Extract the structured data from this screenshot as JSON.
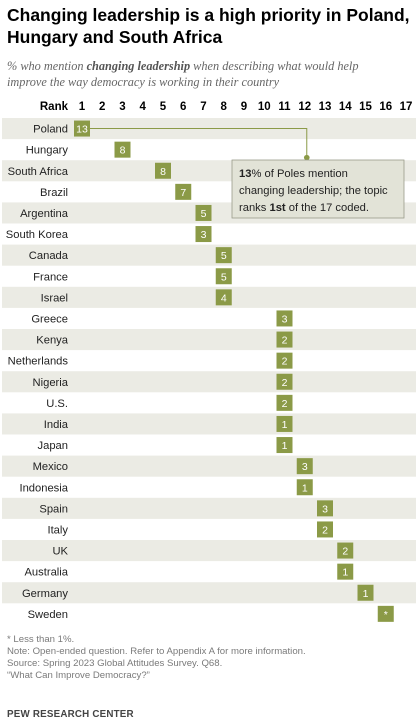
{
  "title_line1": "Changing leadership is a high priority in Poland,",
  "title_line2": "Hungary and South Africa",
  "subtitle_pre": "% who mention ",
  "subtitle_em": "changing leadership",
  "subtitle_post1": " when describing what would help",
  "subtitle_line2": "improve the way democracy is working in their country",
  "colors": {
    "square": "#8b9a47",
    "square_text": "#ffffff",
    "stripe": "#ebebe4",
    "annotation_fill": "#e2e3d7",
    "annotation_border": "#8b9a47"
  },
  "chart_data": {
    "type": "table",
    "rank_header": "Rank",
    "ranks": [
      "1",
      "2",
      "3",
      "4",
      "5",
      "6",
      "7",
      "8",
      "9",
      "10",
      "11",
      "12",
      "13",
      "14",
      "15",
      "16",
      "17"
    ],
    "rows": [
      {
        "country": "Poland",
        "rank": 1,
        "value": "13"
      },
      {
        "country": "Hungary",
        "rank": 3,
        "value": "8"
      },
      {
        "country": "South Africa",
        "rank": 5,
        "value": "8"
      },
      {
        "country": "Brazil",
        "rank": 6,
        "value": "7"
      },
      {
        "country": "Argentina",
        "rank": 7,
        "value": "5"
      },
      {
        "country": "South Korea",
        "rank": 7,
        "value": "3"
      },
      {
        "country": "Canada",
        "rank": 8,
        "value": "5"
      },
      {
        "country": "France",
        "rank": 8,
        "value": "5"
      },
      {
        "country": "Israel",
        "rank": 8,
        "value": "4"
      },
      {
        "country": "Greece",
        "rank": 11,
        "value": "3"
      },
      {
        "country": "Kenya",
        "rank": 11,
        "value": "2"
      },
      {
        "country": "Netherlands",
        "rank": 11,
        "value": "2"
      },
      {
        "country": "Nigeria",
        "rank": 11,
        "value": "2"
      },
      {
        "country": "U.S.",
        "rank": 11,
        "value": "2"
      },
      {
        "country": "India",
        "rank": 11,
        "value": "1"
      },
      {
        "country": "Japan",
        "rank": 11,
        "value": "1"
      },
      {
        "country": "Mexico",
        "rank": 12,
        "value": "3"
      },
      {
        "country": "Indonesia",
        "rank": 12,
        "value": "1"
      },
      {
        "country": "Spain",
        "rank": 13,
        "value": "3"
      },
      {
        "country": "Italy",
        "rank": 13,
        "value": "2"
      },
      {
        "country": "UK",
        "rank": 14,
        "value": "2"
      },
      {
        "country": "Australia",
        "rank": 14,
        "value": "1"
      },
      {
        "country": "Germany",
        "rank": 15,
        "value": "1"
      },
      {
        "country": "Sweden",
        "rank": 16,
        "value": "*"
      }
    ],
    "annotation": {
      "country": "Poland",
      "parts": [
        {
          "text": "13",
          "bold": true
        },
        {
          "text": "% of Poles mention",
          "bold": false
        },
        {
          "text": "\n",
          "bold": false
        },
        {
          "text": "changing leadership; the topic",
          "bold": false
        },
        {
          "text": "\n",
          "bold": false
        },
        {
          "text": "ranks ",
          "bold": false
        },
        {
          "text": "1st",
          "bold": true
        },
        {
          "text": " of the 17 coded.",
          "bold": false
        }
      ]
    }
  },
  "notes": [
    "* Less than 1%.",
    "Note: Open-ended question. Refer to Appendix A for more information.",
    "Source: Spring 2023 Global Attitudes Survey. Q68.",
    "“What Can Improve Democracy?”"
  ],
  "org": "PEW RESEARCH CENTER"
}
